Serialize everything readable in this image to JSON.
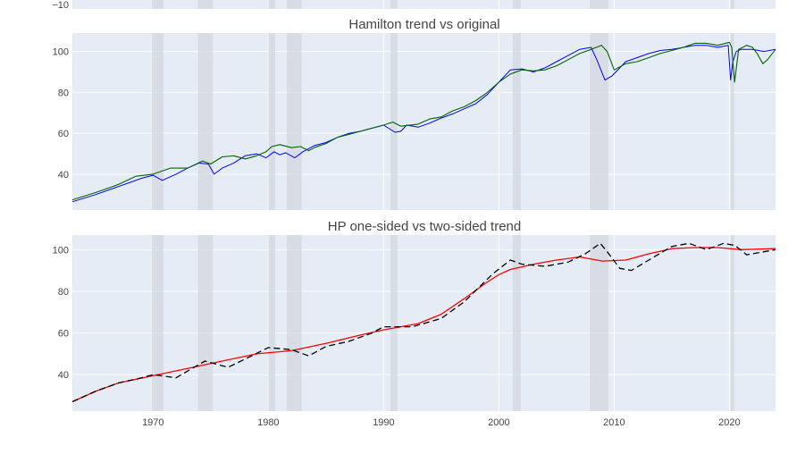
{
  "colors": {
    "plot_bg": "#e5ecf6",
    "grid": "#ffffff",
    "recession_band": "#d3d8df",
    "hamilton_trend": "#0000ff",
    "original": "#006400",
    "hp_one_sided": "#ff0000",
    "hp_two_sided": "#000000"
  },
  "chart_data": [
    {
      "type": "line",
      "title": "",
      "note": "partial panel cut off at the top of the screenshot",
      "x_range": [
        1963,
        2024
      ],
      "y_ticks_visible": [
        -10
      ],
      "y_tick_labels_visible": [
        "−10"
      ],
      "recession_bands": [
        [
          1969.9,
          1970.9
        ],
        [
          1973.9,
          1975.2
        ],
        [
          1980.0,
          1980.6
        ],
        [
          1981.6,
          1982.9
        ],
        [
          1990.6,
          1991.2
        ],
        [
          2001.2,
          2001.9
        ],
        [
          2007.9,
          2009.5
        ],
        [
          2020.1,
          2020.4
        ]
      ]
    },
    {
      "type": "line",
      "title": "Hamilton trend vs original",
      "x_range": [
        1963,
        2024
      ],
      "y_range": [
        22.5,
        109
      ],
      "y_ticks": [
        40,
        60,
        80,
        100
      ],
      "grid": true,
      "legend": "none",
      "recession_bands": [
        [
          1969.9,
          1970.9
        ],
        [
          1973.9,
          1975.2
        ],
        [
          1980.0,
          1980.6
        ],
        [
          1981.6,
          1982.9
        ],
        [
          1990.6,
          1991.2
        ],
        [
          2001.2,
          2001.9
        ],
        [
          2007.9,
          2009.5
        ],
        [
          2020.1,
          2020.4
        ]
      ],
      "series": [
        {
          "style": "solid-blue",
          "x": [
            1963,
            1965,
            1967,
            1968,
            1969,
            1970,
            1970.8,
            1972,
            1973,
            1974,
            1974.8,
            1975.3,
            1976,
            1977,
            1978,
            1979,
            1979.8,
            1980.5,
            1981,
            1981.5,
            1982.3,
            1983,
            1984,
            1985,
            1986,
            1987,
            1988,
            1989,
            1990,
            1991,
            1991.5,
            1992,
            1993,
            1994,
            1995,
            1996,
            1997,
            1998,
            1999,
            2000,
            2001,
            2002,
            2003,
            2004,
            2005,
            2006,
            2007,
            2008,
            2008.5,
            2009.2,
            2009.8,
            2011,
            2012,
            2013,
            2014,
            2015,
            2016,
            2017,
            2018,
            2019,
            2019.9,
            2020.1,
            2020.3,
            2020.6,
            2021,
            2022,
            2023,
            2024
          ],
          "y": [
            26.5,
            30,
            34,
            36,
            38,
            39.5,
            37,
            40,
            43,
            45.5,
            45,
            40,
            43,
            45.5,
            49,
            50,
            48,
            51,
            49.5,
            50.5,
            48,
            51,
            54,
            55.5,
            58,
            60,
            61,
            62.5,
            64,
            60.5,
            61,
            64,
            63,
            65,
            67.5,
            69.5,
            72,
            74.5,
            79,
            85,
            91,
            91.5,
            90,
            92,
            95,
            98,
            101,
            102,
            96,
            86,
            88,
            95,
            97,
            99,
            100.5,
            101,
            102,
            103,
            103,
            102,
            103,
            86,
            95,
            100,
            101,
            101,
            100,
            101
          ]
        },
        {
          "style": "solid-green",
          "x": [
            1963,
            1965,
            1967,
            1968.5,
            1970,
            1971.5,
            1973,
            1974.3,
            1975,
            1976,
            1977,
            1978,
            1979,
            1979.8,
            1980.3,
            1981,
            1982,
            1982.8,
            1983.5,
            1984,
            1985,
            1986,
            1987,
            1988,
            1989,
            1990,
            1990.8,
            1991.5,
            1993,
            1994,
            1995,
            1996,
            1997,
            1998,
            1999,
            2000,
            2001,
            2002,
            2003,
            2004,
            2005,
            2006,
            2007,
            2008,
            2008.9,
            2009.4,
            2010,
            2011,
            2012,
            2013,
            2014,
            2015,
            2016,
            2017,
            2018,
            2019,
            2020,
            2020.2,
            2020.45,
            2020.8,
            2021.5,
            2022,
            2022.4,
            2022.9,
            2023.3,
            2024
          ],
          "y": [
            27.5,
            31,
            35,
            39,
            40,
            43,
            43,
            46.5,
            45,
            48.5,
            49,
            47.5,
            49,
            51,
            53.5,
            54.5,
            53,
            53.5,
            51.5,
            53,
            55,
            58,
            59.5,
            61,
            62.5,
            64,
            65.5,
            63.5,
            64.5,
            67,
            68,
            71,
            73,
            76,
            80,
            85,
            89,
            91,
            90.5,
            91,
            93,
            96,
            99,
            101,
            103,
            100,
            91,
            94,
            95,
            97,
            99,
            100.5,
            102,
            104,
            104,
            103,
            104.5,
            102,
            85,
            101,
            103,
            102,
            99,
            94,
            96,
            101
          ]
        }
      ]
    },
    {
      "type": "line",
      "title": "HP one-sided vs two-sided trend",
      "x_range": [
        1963,
        2024
      ],
      "x_ticks": [
        1970,
        1980,
        1990,
        2000,
        2010,
        2020
      ],
      "y_range": [
        22.5,
        107
      ],
      "y_ticks": [
        40,
        60,
        80,
        100
      ],
      "grid": true,
      "legend": "none",
      "recession_bands": [
        [
          1969.9,
          1970.9
        ],
        [
          1973.9,
          1975.2
        ],
        [
          1980.0,
          1980.6
        ],
        [
          1981.6,
          1982.9
        ],
        [
          1990.6,
          1991.2
        ],
        [
          2001.2,
          2001.9
        ],
        [
          2007.9,
          2009.5
        ],
        [
          2020.1,
          2020.4
        ]
      ],
      "series": [
        {
          "style": "solid-red",
          "x": [
            1963,
            1965,
            1967,
            1970,
            1973,
            1976,
            1979,
            1982,
            1985,
            1988,
            1990,
            1993,
            1995,
            1997,
            1999,
            2000,
            2001,
            2003,
            2005,
            2007,
            2009,
            2011,
            2013,
            2015,
            2017,
            2019,
            2021,
            2024
          ],
          "y": [
            27,
            32,
            36,
            39.5,
            43,
            46.5,
            50,
            51.5,
            55,
            59,
            61.5,
            64.5,
            69,
            76.5,
            84.5,
            88,
            90.5,
            93,
            95,
            96.5,
            94.5,
            95,
            98,
            100.5,
            101,
            101,
            100,
            100.5
          ]
        },
        {
          "style": "dashed-black",
          "x": [
            1963,
            1965,
            1967,
            1969,
            1970,
            1972,
            1974.5,
            1976.5,
            1978,
            1980,
            1982,
            1983.5,
            1985,
            1987,
            1989,
            1990,
            1992.5,
            1995,
            1997,
            1999.5,
            2001,
            2002,
            2004,
            2006,
            2007.5,
            2008.8,
            2009.4,
            2010.5,
            2011.5,
            2013,
            2015,
            2016.5,
            2018,
            2019.5,
            2020.5,
            2021.5,
            2023,
            2024
          ],
          "y": [
            27,
            32,
            36,
            38.5,
            40,
            38.5,
            46.5,
            43.5,
            47.5,
            53,
            52,
            49,
            53.5,
            56,
            60,
            63,
            63,
            67,
            75,
            88.5,
            95,
            93,
            92,
            94,
            98,
            103,
            99,
            91,
            90,
            95,
            101.5,
            103,
            100,
            103,
            102,
            97.5,
            99,
            100
          ]
        }
      ]
    }
  ]
}
